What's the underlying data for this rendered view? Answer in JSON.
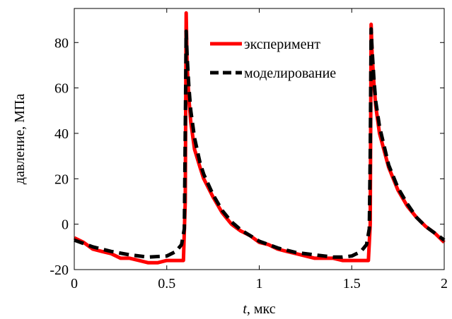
{
  "chart_data": {
    "type": "line",
    "title": "",
    "xlabel_italic": "t",
    "xlabel_rest": ", мкс",
    "ylabel": "давление, МПа",
    "xlim": [
      0,
      2
    ],
    "ylim": [
      -20,
      95
    ],
    "xticks": [
      0,
      0.5,
      1,
      1.5,
      2
    ],
    "xtick_labels": [
      "0",
      "0.5",
      "1",
      "1.5",
      "2"
    ],
    "yticks": [
      -20,
      0,
      20,
      40,
      60,
      80
    ],
    "ytick_labels": [
      "-20",
      "0",
      "20",
      "40",
      "60",
      "80"
    ],
    "grid": false,
    "legend_position": "top-right",
    "series": [
      {
        "name": "эксперимент",
        "color": "#ff0000",
        "style": "solid",
        "x": [
          0,
          0.05,
          0.1,
          0.15,
          0.2,
          0.25,
          0.3,
          0.35,
          0.4,
          0.45,
          0.5,
          0.55,
          0.59,
          0.6,
          0.605,
          0.61,
          0.62,
          0.63,
          0.65,
          0.68,
          0.7,
          0.75,
          0.8,
          0.85,
          0.9,
          0.95,
          1.0,
          1.05,
          1.1,
          1.15,
          1.2,
          1.25,
          1.3,
          1.35,
          1.4,
          1.45,
          1.5,
          1.55,
          1.59,
          1.6,
          1.605,
          1.61,
          1.62,
          1.63,
          1.65,
          1.7,
          1.75,
          1.8,
          1.85,
          1.9,
          1.95,
          2.0
        ],
        "y": [
          -6,
          -8,
          -11,
          -12,
          -13,
          -15,
          -15,
          -16,
          -17,
          -17,
          -16,
          -16,
          -16,
          10,
          93,
          70,
          55,
          45,
          33,
          25,
          20,
          12,
          5,
          0,
          -3,
          -5,
          -8,
          -9,
          -11,
          -12,
          -13,
          -14,
          -15,
          -15,
          -15,
          -16,
          -16,
          -16,
          -16,
          0,
          88,
          75,
          62,
          52,
          40,
          25,
          15,
          8,
          3,
          -1,
          -4,
          -8
        ]
      },
      {
        "name": "моделирование",
        "color": "#000000",
        "style": "dashed",
        "x": [
          0,
          0.1,
          0.2,
          0.3,
          0.4,
          0.5,
          0.55,
          0.58,
          0.595,
          0.6,
          0.605,
          0.61,
          0.62,
          0.63,
          0.65,
          0.68,
          0.7,
          0.75,
          0.8,
          0.85,
          0.9,
          0.95,
          1.0,
          1.05,
          1.1,
          1.15,
          1.2,
          1.25,
          1.3,
          1.35,
          1.4,
          1.45,
          1.5,
          1.55,
          1.58,
          1.595,
          1.6,
          1.605,
          1.61,
          1.62,
          1.63,
          1.65,
          1.7,
          1.75,
          1.8,
          1.85,
          1.9,
          1.95,
          2.0
        ],
        "y": [
          -7,
          -10,
          -12,
          -13.5,
          -14.5,
          -14,
          -12,
          -9,
          -2,
          40,
          85,
          74,
          60,
          50,
          38,
          27,
          22,
          13,
          6,
          1,
          -2.5,
          -5,
          -7.5,
          -9,
          -10.5,
          -11.5,
          -12.5,
          -13,
          -13.5,
          -14,
          -14.5,
          -14.5,
          -14,
          -12,
          -9,
          -2,
          30,
          86,
          77,
          64,
          54,
          43,
          26,
          16,
          9,
          3,
          -1,
          -4,
          -7
        ]
      }
    ]
  }
}
